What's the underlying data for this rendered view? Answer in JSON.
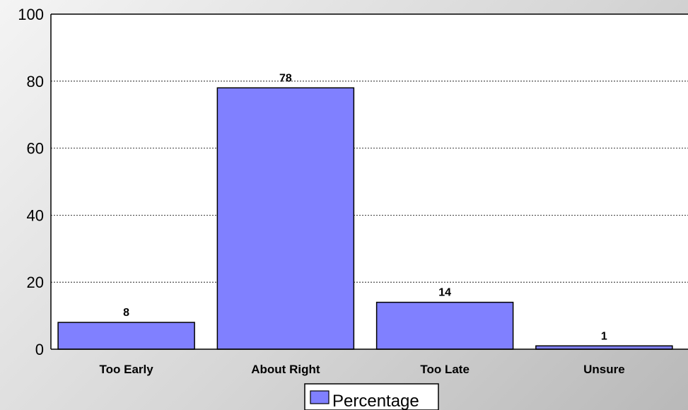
{
  "chart_data": {
    "type": "bar",
    "categories": [
      "Too Early",
      "About Right",
      "Too Late",
      "Unsure"
    ],
    "series": [
      {
        "name": "Percentage",
        "values": [
          8,
          78,
          14,
          1
        ],
        "color": "#8080ff"
      }
    ],
    "ylim": [
      0,
      100
    ],
    "yticks": [
      0,
      20,
      40,
      60,
      80,
      100
    ],
    "grid": true,
    "legend": "bottom-center",
    "colors": {
      "bar": "#8080ff",
      "plot_background": "#ffffff",
      "border": "#000000"
    }
  }
}
